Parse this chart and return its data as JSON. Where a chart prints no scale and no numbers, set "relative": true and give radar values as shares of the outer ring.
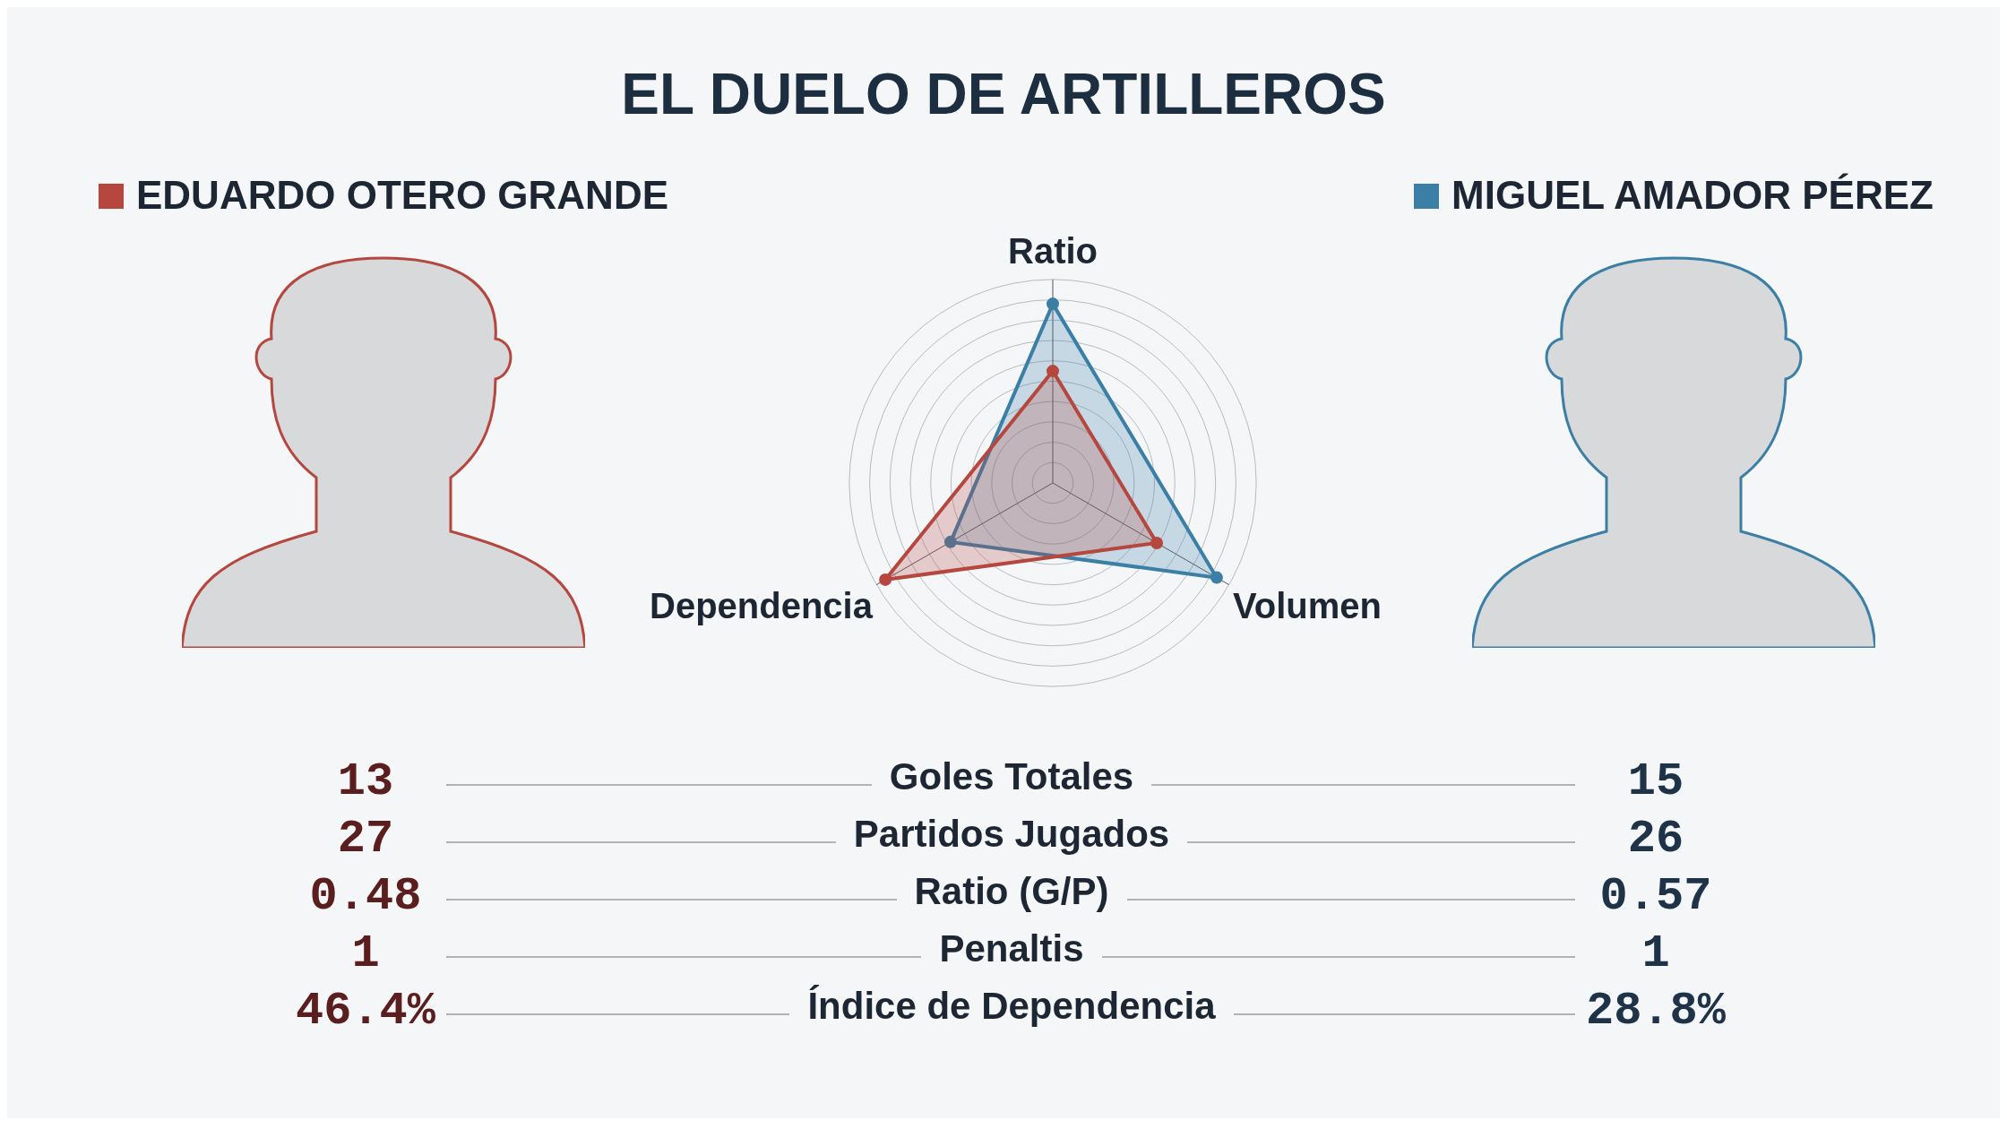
{
  "chart_data": [
    {
      "type": "radar",
      "title": "EL DUELO DE ARTILLEROS",
      "categories": [
        "Ratio",
        "Volumen",
        "Dependencia"
      ],
      "relative": true,
      "legend": "top",
      "series": [
        {
          "name": "EDUARDO OTERO GRANDE",
          "color": "#b5473f",
          "values": [
            0.55,
            0.59,
            0.95
          ]
        },
        {
          "name": "MIGUEL AMADOR PÉREZ",
          "color": "#3b7fa6",
          "values": [
            0.88,
            0.93,
            0.58
          ]
        }
      ]
    },
    {
      "type": "other",
      "categories": [
        "Goles Totales",
        "Partidos Jugados",
        "Ratio (G/P)",
        "Penaltis",
        "Índice de Dependencia"
      ],
      "series": [
        {
          "color": "#5a1e1e",
          "values": [
            13,
            27,
            0.48,
            1,
            46.4
          ],
          "value_labels": [
            "13",
            "27",
            "0.48",
            "1",
            "46.4%"
          ]
        },
        {
          "color": "#1e3248",
          "values": [
            15,
            26,
            0.57,
            1,
            28.8
          ],
          "value_labels": [
            "15",
            "26",
            "0.57",
            "1",
            "28.8%"
          ]
        }
      ]
    }
  ]
}
